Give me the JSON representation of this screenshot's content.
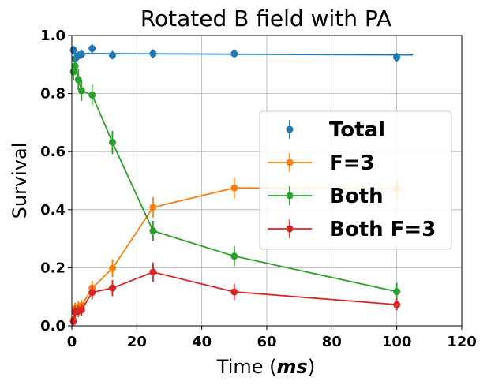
{
  "chart_data": {
    "type": "line",
    "title": "Rotated B field with PA",
    "xlabel_prefix": "Time (",
    "xlabel_unit": "ms",
    "xlabel_suffix": ")",
    "ylabel": "Survival",
    "xlim": [
      0,
      120
    ],
    "ylim": [
      0,
      1
    ],
    "xticks": [
      0,
      20,
      40,
      60,
      80,
      100,
      120
    ],
    "yticks": [
      0.0,
      0.2,
      0.4,
      0.6,
      0.8,
      1.0
    ],
    "xtick_labels": [
      "0",
      "20",
      "40",
      "60",
      "80",
      "100",
      "120"
    ],
    "ytick_labels": [
      "0.0",
      "0.2",
      "0.4",
      "0.6",
      "0.8",
      "1.0"
    ],
    "grid": true,
    "legend_position": "center-right",
    "series": [
      {
        "name": "Total",
        "style": "points-with-fit",
        "color": "#1f77b4",
        "x": [
          0.5,
          1,
          2,
          3,
          6.25,
          12.5,
          25,
          50,
          100
        ],
        "y": [
          0.95,
          0.92,
          0.93,
          0.935,
          0.955,
          0.932,
          0.937,
          0.937,
          0.925
        ],
        "yerr": [
          0.015,
          0.015,
          0.015,
          0.015,
          0.015,
          0.015,
          0.015,
          0.015,
          0.015
        ],
        "fit": {
          "x": [
            0,
            105
          ],
          "y": [
            0.938,
            0.933
          ]
        }
      },
      {
        "name": "F=3",
        "style": "line-points",
        "color": "#ff7f0e",
        "x": [
          0.5,
          1,
          2,
          3,
          6.25,
          12.5,
          25,
          50,
          100
        ],
        "y": [
          0.02,
          0.06,
          0.065,
          0.07,
          0.13,
          0.198,
          0.408,
          0.475,
          0.472
        ],
        "yerr": [
          0.015,
          0.02,
          0.02,
          0.02,
          0.025,
          0.03,
          0.035,
          0.035,
          0.035
        ]
      },
      {
        "name": "Both",
        "style": "line-points",
        "color": "#2ca02c",
        "x": [
          0.5,
          1,
          2,
          3,
          6.25,
          12.5,
          25,
          50,
          100
        ],
        "y": [
          0.875,
          0.895,
          0.848,
          0.81,
          0.795,
          0.632,
          0.327,
          0.24,
          0.118
        ],
        "yerr": [
          0.03,
          0.03,
          0.035,
          0.035,
          0.035,
          0.04,
          0.035,
          0.035,
          0.03
        ]
      },
      {
        "name": "Both F=3",
        "style": "line-points",
        "color": "#d62728",
        "x": [
          0.5,
          1,
          2,
          3,
          6.25,
          12.5,
          25,
          50,
          100
        ],
        "y": [
          0.015,
          0.048,
          0.05,
          0.055,
          0.115,
          0.13,
          0.185,
          0.117,
          0.073
        ],
        "yerr": [
          0.015,
          0.02,
          0.02,
          0.02,
          0.025,
          0.028,
          0.033,
          0.028,
          0.02
        ]
      }
    ]
  }
}
